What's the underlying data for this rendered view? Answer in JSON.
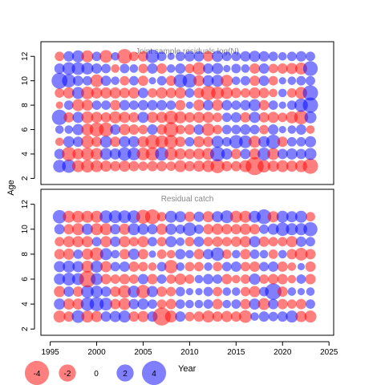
{
  "chart_data": [
    {
      "type": "scatter",
      "title": "Joint sample residuals log(N)",
      "ylabel": "Age",
      "xlim": [
        1994,
        2025.5
      ],
      "ylim": [
        1.5,
        13.2
      ],
      "yticks": [
        2,
        4,
        6,
        8,
        10,
        12
      ],
      "years": [
        1996,
        1997,
        1998,
        1999,
        2000,
        2001,
        2002,
        2003,
        2004,
        2005,
        2006,
        2007,
        2008,
        2009,
        2010,
        2011,
        2012,
        2013,
        2014,
        2015,
        2016,
        2017,
        2018,
        2019,
        2020,
        2021,
        2022,
        2023
      ],
      "ages": [
        3,
        4,
        5,
        6,
        7,
        8,
        9,
        10,
        11,
        12
      ],
      "residuals": [
        [
          0.9,
          1.0,
          -0.8,
          -0.9,
          -0.8,
          -0.7,
          -0.6,
          -0.7,
          -0.6,
          -0.5,
          -0.6,
          -0.6,
          -0.5,
          -0.8,
          -0.6,
          -0.7,
          -0.8,
          -1.1,
          -0.6,
          -0.6,
          -0.8,
          -1.8,
          -0.9,
          -0.7,
          -0.8,
          -0.7,
          -0.8,
          -1.3
        ],
        [
          0.6,
          -1.1,
          -0.7,
          -0.9,
          -0.8,
          0.8,
          0.7,
          1.0,
          0.9,
          -0.9,
          -1.0,
          1.0,
          -0.9,
          -0.7,
          -0.6,
          -0.7,
          -0.8,
          1.2,
          0.7,
          -0.6,
          0.6,
          -0.7,
          0.9,
          -0.8,
          0.6,
          0.7,
          0.6,
          0.8
        ],
        [
          -0.4,
          0.7,
          0.6,
          -0.9,
          -0.6,
          0.8,
          -0.6,
          0.7,
          0.7,
          -0.7,
          -1.1,
          -0.9,
          -1.0,
          -0.6,
          0.5,
          -0.7,
          -0.6,
          0.8,
          0.5,
          1.0,
          0.9,
          -0.8,
          0.7,
          1.1,
          -0.6,
          0.5,
          0.5,
          0.7
        ],
        [
          0.4,
          0.4,
          0.7,
          -0.8,
          -1.1,
          -1.1,
          0.6,
          -0.7,
          -0.6,
          -0.5,
          0.6,
          -0.6,
          -1.2,
          -0.5,
          -0.6,
          0.6,
          -0.9,
          -0.5,
          0.5,
          0.5,
          0.6,
          0.5,
          -0.5,
          0.6,
          0.3,
          0.4,
          0.6,
          -0.4
        ],
        [
          1.3,
          -0.6,
          0.7,
          -0.8,
          -0.7,
          -0.6,
          -0.8,
          -0.7,
          -0.6,
          0.7,
          -0.7,
          -0.7,
          -1.0,
          -0.8,
          -0.6,
          -0.7,
          -0.7,
          -0.5,
          0.5,
          0.6,
          -0.6,
          0.7,
          -0.6,
          -0.7,
          -0.5,
          -0.8,
          -1.1,
          0.8
        ],
        [
          -0.3,
          0.5,
          -0.8,
          -0.7,
          0.5,
          0.5,
          -0.6,
          0.6,
          0.5,
          0.6,
          0.6,
          0.6,
          0.5,
          -0.6,
          0.3,
          -0.7,
          0.6,
          -0.7,
          0.6,
          0.5,
          0.6,
          0.8,
          -0.6,
          0.5,
          0.3,
          0.5,
          1.0,
          1.3
        ],
        [
          -0.5,
          -0.7,
          0.8,
          -0.9,
          -0.7,
          -0.7,
          -0.7,
          -0.6,
          -0.7,
          0.6,
          -0.5,
          -0.7,
          -0.6,
          -0.7,
          0.5,
          -0.6,
          -1.2,
          -0.9,
          -0.8,
          -0.6,
          -0.5,
          -0.7,
          -0.6,
          -0.4,
          0.4,
          -0.5,
          -0.8,
          1.3
        ],
        [
          1.4,
          1.0,
          0.6,
          0.5,
          -0.9,
          0.6,
          0.4,
          -0.5,
          0.5,
          -0.6,
          0.3,
          0.5,
          -0.6,
          1.0,
          1.1,
          -0.7,
          0.7,
          0.8,
          -0.8,
          0.4,
          0.5,
          -0.6,
          0.6,
          -0.5,
          0.3,
          0.4,
          0.5,
          0.5
        ],
        [
          0.6,
          0.9,
          0.9,
          0.8,
          0.6,
          0.5,
          -0.4,
          0.5,
          0.4,
          -0.5,
          0.6,
          -0.6,
          0.4,
          0.6,
          -0.5,
          -0.9,
          0.6,
          0.7,
          0.3,
          0.5,
          0.4,
          -0.6,
          0.6,
          -0.5,
          -0.6,
          -0.7,
          -0.8,
          1.2
        ],
        [
          -0.5,
          0.6,
          0.8,
          -0.8,
          0.5,
          -0.9,
          0.4,
          -1.2,
          -0.5,
          -0.6,
          1.0,
          0.5,
          0.3,
          0.5,
          0.6,
          0.6,
          -0.6,
          0.7,
          0.5,
          0.5,
          0.6,
          0.7,
          0.6,
          0.5,
          0.4,
          0.5,
          0.6,
          0.5
        ]
      ]
    },
    {
      "type": "scatter",
      "title": "Residual catch",
      "ylabel": "Age",
      "xlabel": "Year",
      "xlim": [
        1994,
        2025.5
      ],
      "ylim": [
        1.5,
        13.2
      ],
      "yticks": [
        2,
        4,
        6,
        8,
        10,
        12
      ],
      "xticks": [
        1995,
        2000,
        2005,
        2010,
        2015,
        2020,
        2025
      ],
      "years": [
        1996,
        1997,
        1998,
        1999,
        2000,
        2001,
        2002,
        2003,
        2004,
        2005,
        2006,
        2007,
        2008,
        2009,
        2010,
        2011,
        2012,
        2013,
        2014,
        2015,
        2016,
        2017,
        2018,
        2019,
        2020,
        2021,
        2022,
        2023
      ],
      "ages": [
        3,
        4,
        5,
        6,
        7,
        8,
        9,
        10,
        11
      ],
      "residuals": [
        [
          -0.8,
          -0.6,
          0.9,
          -0.8,
          -0.7,
          0.6,
          0.7,
          0.8,
          -0.6,
          -0.7,
          0.6,
          -1.8,
          -0.8,
          0.6,
          -0.5,
          -0.6,
          -0.8,
          -0.6,
          -0.7,
          -0.6,
          -0.9,
          0.4,
          0.6,
          0.5,
          0.6,
          0.8,
          -0.7,
          -0.8
        ],
        [
          0.7,
          -0.7,
          -0.7,
          1.0,
          1.1,
          0.9,
          -0.6,
          -0.8,
          0.6,
          0.7,
          0.5,
          -0.5,
          -0.6,
          0.5,
          0.4,
          0.4,
          0.5,
          -0.6,
          0.4,
          0.5,
          -0.6,
          0.7,
          -0.8,
          0.6,
          -0.6,
          -0.5,
          -0.6,
          0.5
        ],
        [
          -0.7,
          0.6,
          -0.6,
          0.9,
          0.8,
          0.6,
          -0.6,
          -0.9,
          0.8,
          -1.0,
          0.7,
          -0.6,
          -0.5,
          0.5,
          0.3,
          0.3,
          0.5,
          -0.5,
          0.4,
          0.4,
          -0.5,
          -0.7,
          0.5,
          1.5,
          -0.6,
          0.4,
          0.3,
          0.4
        ],
        [
          0.7,
          0.9,
          0.8,
          -1.5,
          0.8,
          -0.6,
          -0.5,
          -0.6,
          -0.5,
          0.6,
          -0.6,
          0.5,
          -0.5,
          -0.7,
          -0.5,
          0.4,
          0.6,
          0.5,
          -0.6,
          -0.4,
          -0.5,
          0.7,
          -0.5,
          -0.6,
          -0.6,
          -0.4,
          0.5,
          -0.6
        ],
        [
          0.7,
          0.8,
          0.7,
          -0.8,
          0.8,
          -0.7,
          0.5,
          0.6,
          -0.6,
          -0.5,
          -0.4,
          0.5,
          -1.0,
          0.4,
          -0.5,
          -0.5,
          0.4,
          -0.5,
          0.5,
          0.6,
          -0.5,
          -0.6,
          0.5,
          0.6,
          -0.6,
          -0.4,
          0.3,
          -0.6
        ],
        [
          -0.6,
          -0.7,
          0.5,
          -0.7,
          -1.0,
          0.8,
          0.4,
          -0.6,
          0.7,
          -0.6,
          0.3,
          -0.5,
          -0.4,
          0.6,
          0.4,
          -0.6,
          0.6,
          1.0,
          -0.5,
          0.4,
          -0.6,
          0.5,
          0.4,
          -0.5,
          0.4,
          -0.6,
          -0.9,
          -0.6
        ],
        [
          -0.5,
          -0.7,
          -0.7,
          -0.7,
          0.5,
          -0.7,
          0.6,
          -0.7,
          -0.5,
          -0.7,
          0.5,
          -0.5,
          0.7,
          0.4,
          -0.5,
          0.6,
          -0.5,
          -0.6,
          -0.5,
          -0.6,
          -0.7,
          0.7,
          -0.6,
          -0.5,
          -0.5,
          -0.7,
          0.6,
          0.5
        ],
        [
          0.6,
          -0.6,
          -0.8,
          0.7,
          -0.8,
          -0.8,
          0.6,
          -0.7,
          0.8,
          0.7,
          0.6,
          -0.7,
          0.7,
          0.5,
          1.0,
          0.5,
          -0.6,
          -0.7,
          -0.6,
          -0.6,
          -0.7,
          -0.6,
          0.5,
          0.7,
          1.0,
          0.8,
          0.8,
          1.1
        ],
        [
          1.0,
          -0.8,
          -0.8,
          -0.8,
          -0.8,
          0.9,
          0.9,
          0.9,
          0.9,
          -1.1,
          -1.2,
          -0.5,
          0.8,
          0.7,
          -0.6,
          0.6,
          -0.7,
          0.7,
          0.9,
          -0.8,
          -0.8,
          0.8,
          1.2,
          -0.7,
          0.8,
          0.7,
          0.8,
          -0.5
        ]
      ]
    }
  ],
  "legend": {
    "xlabel": "Year",
    "entries": [
      {
        "value": -4,
        "label": "-4",
        "color": "#ff0000"
      },
      {
        "value": -2,
        "label": "-2",
        "color": "#ff0000"
      },
      {
        "value": 0,
        "label": "0",
        "color": "#888888"
      },
      {
        "value": 2,
        "label": "2",
        "color": "#0000ff"
      },
      {
        "value": 4,
        "label": "4",
        "color": "#0000ff"
      }
    ]
  },
  "colors": {
    "positive": "#0000ff",
    "negative": "#ff0000"
  }
}
